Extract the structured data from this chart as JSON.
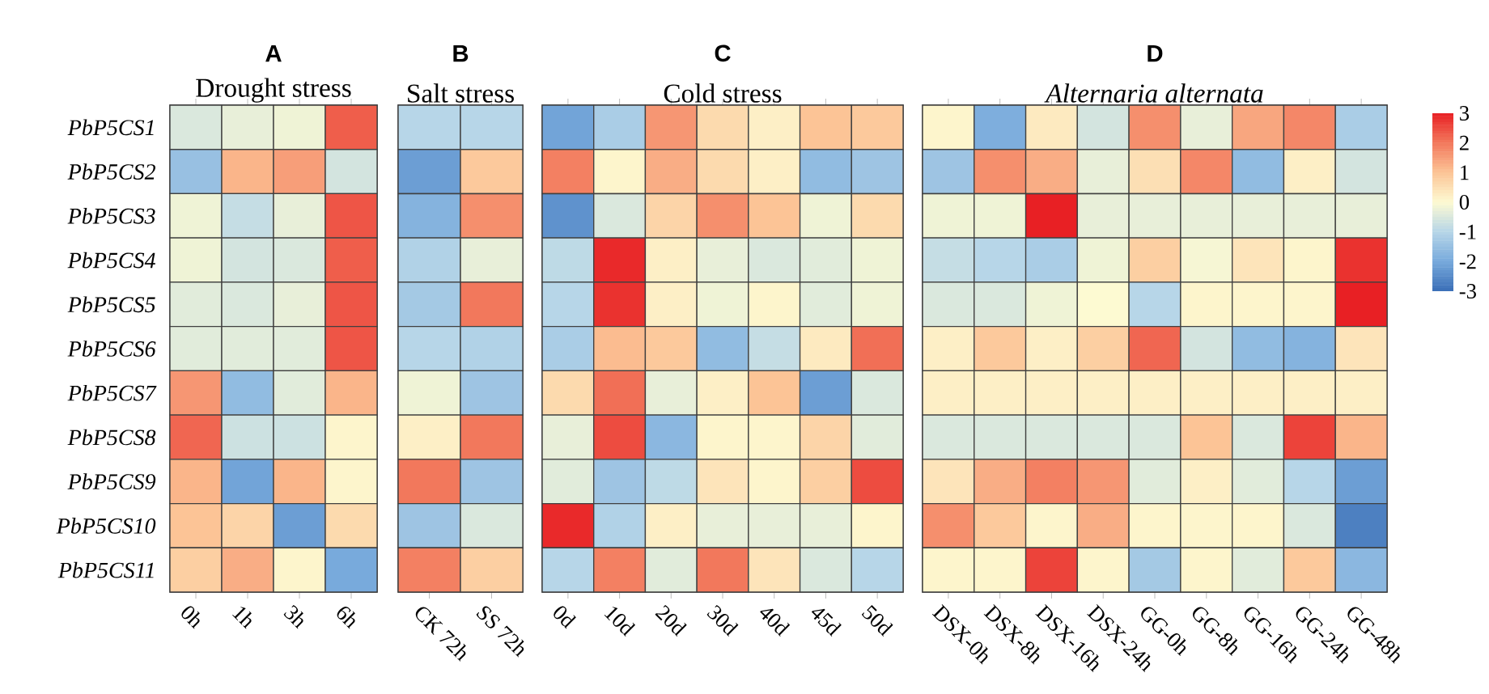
{
  "chart_data": {
    "type": "heatmap",
    "annotations": [
      "A",
      "Drought stress",
      "B",
      "Salt stress",
      "C",
      "Cold stress",
      "D",
      "Alternaria alternata"
    ],
    "categories": [
      "0h",
      "1h",
      "3h",
      "6h",
      "CK 72h",
      "SS 72h",
      "0d",
      "10d",
      "20d",
      "30d",
      "40d",
      "45d",
      "50d",
      "DSX-0h",
      "DSX-8h",
      "DSX-16h",
      "DSX-24h",
      "GG-0h",
      "GG-8h",
      "GG-16h",
      "GG-24h",
      "GG-48h"
    ],
    "y_categories": [
      "PbP5CS1",
      "PbP5CS2",
      "PbP5CS3",
      "PbP5CS4",
      "PbP5CS5",
      "PbP5CS6",
      "PbP5CS7",
      "PbP5CS8",
      "PbP5CS9",
      "PbP5CS10",
      "PbP5CS11"
    ],
    "cells": [
      [
        -0.5,
        -0.3,
        -0.2,
        2.3,
        -1.0,
        -1.0,
        -2.1,
        -1.2,
        1.6,
        0.6,
        0.2,
        1.0,
        0.9,
        0.1,
        -1.9,
        0.3,
        -0.6,
        1.7,
        -0.3,
        1.4,
        1.8,
        -1.2
      ],
      [
        -1.5,
        1.2,
        1.5,
        -0.6,
        -2.2,
        0.9,
        1.9,
        0.1,
        1.3,
        0.6,
        0.2,
        -1.6,
        -1.4,
        -1.4,
        1.7,
        1.3,
        -0.3,
        0.5,
        1.8,
        -1.6,
        0.2,
        -0.6
      ],
      [
        -0.2,
        -0.8,
        -0.3,
        2.4,
        -1.8,
        1.7,
        -2.4,
        -0.5,
        0.7,
        1.7,
        1.0,
        -0.2,
        0.6,
        -0.2,
        -0.2,
        3.0,
        -0.3,
        -0.3,
        -0.3,
        -0.3,
        -0.3,
        -0.3
      ],
      [
        -0.2,
        -0.6,
        -0.5,
        2.3,
        -1.1,
        -0.3,
        -0.9,
        2.9,
        0.2,
        -0.3,
        -0.5,
        -0.4,
        -0.2,
        -0.8,
        -1.0,
        -1.2,
        -0.2,
        0.8,
        -0.1,
        0.4,
        0.1,
        2.8
      ],
      [
        -0.4,
        -0.5,
        -0.3,
        2.4,
        -1.3,
        2.0,
        -1.0,
        2.8,
        0.2,
        -0.2,
        0.1,
        -0.4,
        -0.2,
        -0.5,
        -0.5,
        -0.2,
        0.0,
        -1.0,
        0.1,
        0.1,
        0.1,
        3.0
      ],
      [
        -0.4,
        -0.4,
        -0.4,
        2.4,
        -1.0,
        -1.1,
        -1.2,
        1.1,
        0.9,
        -1.6,
        -0.8,
        0.3,
        2.1,
        0.2,
        0.9,
        0.2,
        0.8,
        2.2,
        -0.6,
        -1.6,
        -1.8,
        0.4
      ],
      [
        1.6,
        -1.6,
        -0.4,
        1.2,
        -0.2,
        -1.4,
        0.6,
        2.1,
        -0.3,
        0.2,
        1.0,
        -2.2,
        -0.5,
        0.2,
        0.2,
        0.2,
        0.2,
        0.2,
        0.2,
        0.2,
        0.2,
        0.2
      ],
      [
        2.2,
        -0.7,
        -0.7,
        0.1,
        0.2,
        2.0,
        -0.3,
        2.5,
        -1.7,
        0.1,
        0.1,
        0.7,
        -0.4,
        -0.5,
        -0.5,
        -0.5,
        -0.5,
        -0.5,
        1.0,
        -0.5,
        2.6,
        1.2
      ],
      [
        1.2,
        -2.1,
        1.2,
        0.1,
        2.0,
        -1.4,
        -0.4,
        -1.4,
        -0.9,
        0.4,
        0.1,
        0.8,
        2.5,
        0.4,
        1.3,
        1.9,
        1.6,
        -0.4,
        0.2,
        -0.4,
        -1.0,
        -2.2
      ],
      [
        1.0,
        0.7,
        -2.2,
        0.6,
        -1.4,
        -0.5,
        2.9,
        -1.1,
        0.2,
        -0.3,
        -0.3,
        -0.3,
        0.1,
        1.7,
        0.9,
        0.1,
        1.3,
        0.1,
        0.1,
        0.1,
        -0.5,
        -2.7
      ],
      [
        0.8,
        1.3,
        0.1,
        -2.0,
        1.9,
        0.8,
        -1.0,
        1.9,
        -0.4,
        2.0,
        0.4,
        -0.5,
        -1.0,
        0.1,
        0.1,
        2.6,
        0.1,
        -1.3,
        0.1,
        -0.4,
        0.9,
        -1.7
      ]
    ],
    "clim": [
      -3,
      3
    ],
    "cticks": [
      -3,
      -2,
      -1,
      0,
      1,
      2,
      3
    ]
  }
}
